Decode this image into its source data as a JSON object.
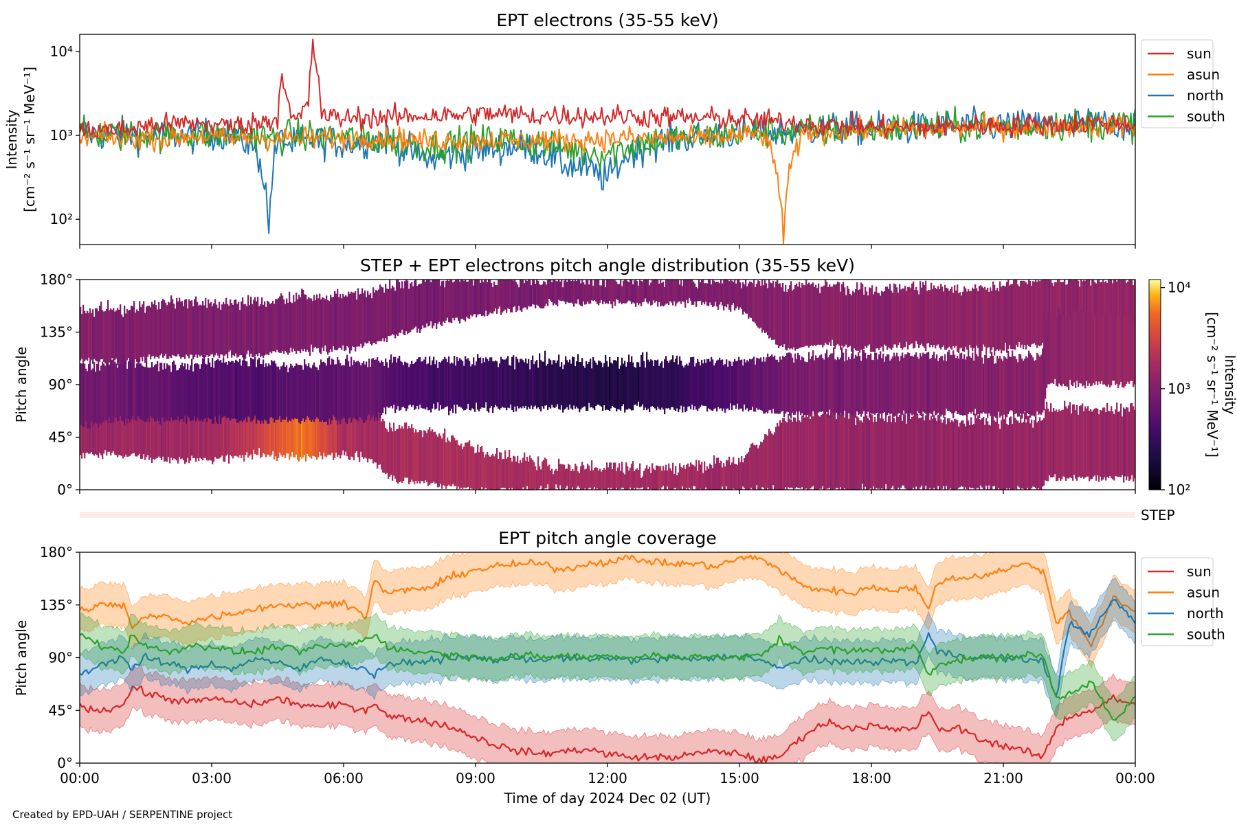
{
  "credit": "Created by EPD-UAH / SERPENTINE project",
  "colors": {
    "sun": "#d62728",
    "asun": "#ff7f0e",
    "north": "#1f77b4",
    "south": "#2ca02c",
    "step_bar": "#fdebe6"
  },
  "chart_data": [
    {
      "type": "line",
      "title": "EPT electrons (35-55 keV)",
      "ylabel_line1": "Intensity",
      "ylabel_line2": "[cm⁻² s⁻¹ sr⁻¹ MeV⁻¹]",
      "yscale": "log",
      "ylim": [
        50,
        16000
      ],
      "yticks": [
        "10²",
        "10³",
        "10⁴"
      ],
      "x_hours": [
        0,
        0.5,
        1,
        1.5,
        2,
        2.5,
        3,
        3.5,
        4,
        4.3,
        4.5,
        4.6,
        4.8,
        5,
        5.2,
        5.3,
        5.5,
        6,
        6.5,
        7,
        7.5,
        8,
        8.5,
        9,
        9.5,
        10,
        10.5,
        11,
        11.5,
        12,
        12.5,
        13,
        13.5,
        14,
        14.5,
        15,
        15.5,
        16,
        16.5,
        17,
        17.5,
        18,
        18.5,
        19,
        19.5,
        20,
        20.5,
        21,
        21.5,
        22,
        22.5,
        23,
        23.5,
        24
      ],
      "legend": [
        "sun",
        "asun",
        "north",
        "south"
      ],
      "legend_position": "outside right",
      "series": [
        {
          "name": "sun",
          "values": [
            1100,
            1200,
            1150,
            1300,
            1350,
            1400,
            1350,
            1300,
            1400,
            1500,
            1600,
            5400,
            1500,
            1600,
            2400,
            10500,
            1700,
            1600,
            1650,
            1600,
            1700,
            1750,
            1700,
            1800,
            1800,
            1750,
            1700,
            1750,
            1700,
            1700,
            1700,
            1650,
            1650,
            1600,
            1600,
            1550,
            1500,
            1450,
            1400,
            1300,
            1300,
            1250,
            1250,
            1250,
            1250,
            1300,
            1300,
            1300,
            1350,
            1350,
            1350,
            1400,
            1400,
            1400
          ]
        },
        {
          "name": "asun",
          "values": [
            900,
            950,
            900,
            950,
            900,
            1000,
            950,
            900,
            950,
            900,
            950,
            900,
            950,
            900,
            950,
            900,
            950,
            900,
            950,
            950,
            900,
            850,
            900,
            850,
            900,
            850,
            900,
            850,
            900,
            900,
            950,
            900,
            950,
            900,
            950,
            1000,
            1050,
            50,
            1100,
            1100,
            1150,
            1150,
            1200,
            1150,
            1200,
            1200,
            1250,
            1250,
            1200,
            1250,
            1300,
            1300,
            1300,
            1300
          ]
        },
        {
          "name": "north",
          "values": [
            1100,
            1000,
            1050,
            950,
            1000,
            950,
            1050,
            1000,
            700,
            60,
            800,
            900,
            750,
            850,
            800,
            900,
            850,
            800,
            850,
            900,
            650,
            500,
            600,
            650,
            700,
            750,
            650,
            450,
            400,
            300,
            600,
            800,
            900,
            950,
            1000,
            1050,
            1100,
            1100,
            1150,
            1200,
            1200,
            1200,
            1250,
            1200,
            1250,
            1300,
            1300,
            1300,
            1300,
            1350,
            1350,
            1400,
            1350,
            1350
          ]
        },
        {
          "name": "south",
          "values": [
            1000,
            1050,
            1000,
            1050,
            1000,
            1050,
            1000,
            1050,
            1000,
            900,
            950,
            950,
            1000,
            950,
            1000,
            950,
            1000,
            950,
            900,
            850,
            800,
            750,
            800,
            850,
            900,
            850,
            800,
            700,
            650,
            600,
            750,
            850,
            900,
            950,
            1000,
            1050,
            1100,
            1100,
            1150,
            1150,
            1200,
            1200,
            1200,
            1250,
            1250,
            1250,
            1300,
            1300,
            1300,
            1350,
            1350,
            1350,
            1400,
            1400
          ]
        }
      ]
    },
    {
      "type": "heatmap",
      "title": "STEP + EPT electrons pitch angle distribution (35-55 keV)",
      "ylabel": "Pitch angle",
      "ylim": [
        0,
        180
      ],
      "yticks": [
        "0°",
        "45°",
        "90°",
        "135°",
        "180°"
      ],
      "colorbar_label_line1": "Intensity",
      "colorbar_label_line2": "[cm⁻² s⁻¹ sr⁻¹ MeV⁻¹]",
      "colorbar_ticks": [
        "10²",
        "10³",
        "10⁴"
      ],
      "colorbar_range": [
        100,
        12000
      ],
      "colormap": "inferno",
      "strip_label": "STEP",
      "bands": [
        {
          "name": "sun",
          "x_hours": [
            0,
            1,
            2,
            3,
            4,
            5,
            6,
            6.7,
            7,
            8,
            9,
            10,
            11,
            12,
            13,
            14,
            15,
            16,
            17,
            18,
            19,
            20,
            21,
            21.9,
            22,
            23,
            24
          ],
          "low": [
            30,
            30,
            25,
            25,
            30,
            28,
            30,
            25,
            10,
            5,
            0,
            0,
            0,
            0,
            0,
            0,
            0,
            0,
            0,
            0,
            0,
            0,
            0,
            0,
            10,
            10,
            10
          ],
          "high": [
            80,
            75,
            70,
            75,
            70,
            72,
            75,
            70,
            55,
            50,
            35,
            25,
            20,
            20,
            18,
            20,
            25,
            60,
            65,
            60,
            65,
            60,
            60,
            60,
            70,
            70,
            70
          ],
          "intensity": [
            1400,
            1600,
            1600,
            1700,
            2500,
            6000,
            1800,
            1800,
            1900,
            1900,
            1900,
            1800,
            1800,
            1800,
            1700,
            1700,
            1600,
            1500,
            1400,
            1400,
            1300,
            1300,
            1400,
            1400,
            1500,
            1500,
            1500
          ]
        },
        {
          "name": "asun",
          "x_hours": [
            0,
            1,
            2,
            3,
            4,
            5,
            6,
            6.7,
            7,
            8,
            9,
            10,
            11,
            12,
            13,
            14,
            15,
            16,
            17,
            18,
            19,
            20,
            21,
            21.9,
            22,
            23,
            24
          ],
          "low": [
            110,
            110,
            115,
            115,
            115,
            120,
            120,
            125,
            130,
            140,
            150,
            155,
            160,
            160,
            160,
            160,
            155,
            120,
            125,
            120,
            125,
            120,
            120,
            125,
            100,
            100,
            100
          ],
          "high": [
            155,
            155,
            160,
            160,
            160,
            165,
            165,
            170,
            175,
            180,
            180,
            180,
            180,
            180,
            180,
            180,
            180,
            175,
            175,
            170,
            175,
            170,
            175,
            180,
            180,
            180,
            180
          ],
          "intensity": [
            1000,
            950,
            1000,
            950,
            950,
            950,
            950,
            950,
            900,
            900,
            900,
            900,
            900,
            950,
            950,
            950,
            1000,
            1100,
            1150,
            1150,
            1200,
            1200,
            1250,
            1250,
            1300,
            1300,
            1300
          ]
        },
        {
          "name": "north",
          "x_hours": [
            0,
            1,
            2,
            3,
            4,
            5,
            6,
            6.7,
            7,
            8,
            9,
            10,
            11,
            12,
            13,
            14,
            15,
            16,
            17,
            18,
            19,
            20,
            21,
            21.9,
            22,
            23,
            24
          ],
          "low": [
            55,
            60,
            60,
            60,
            60,
            60,
            60,
            60,
            70,
            70,
            70,
            70,
            70,
            70,
            70,
            70,
            70,
            65,
            65,
            65,
            65,
            65,
            65,
            65,
            90,
            90,
            90
          ],
          "high": [
            105,
            110,
            105,
            110,
            110,
            105,
            110,
            110,
            110,
            110,
            110,
            110,
            110,
            110,
            110,
            110,
            110,
            115,
            115,
            115,
            115,
            115,
            115,
            115,
            150,
            150,
            150
          ],
          "intensity": [
            800,
            700,
            600,
            500,
            450,
            550,
            600,
            700,
            500,
            400,
            350,
            300,
            250,
            220,
            250,
            350,
            500,
            800,
            900,
            950,
            1000,
            1000,
            1100,
            1100,
            1200,
            1300,
            1300
          ]
        }
      ],
      "gaps_note_hidden": ""
    },
    {
      "type": "line",
      "title": "EPT pitch angle coverage",
      "ylabel": "Pitch angle",
      "xlabel": "Time of day 2024 Dec 02 (UT)",
      "ylim": [
        0,
        180
      ],
      "yticks": [
        "0°",
        "45°",
        "90°",
        "135°",
        "180°"
      ],
      "xticks": [
        "00:00",
        "03:00",
        "06:00",
        "09:00",
        "12:00",
        "15:00",
        "18:00",
        "21:00",
        "00:00"
      ],
      "legend": [
        "sun",
        "asun",
        "north",
        "south"
      ],
      "legend_position": "outside right",
      "x_hours": [
        0,
        0.5,
        1,
        1.2,
        1.5,
        2,
        2.5,
        3,
        3.5,
        4,
        4.5,
        5,
        5.5,
        6,
        6.5,
        6.7,
        7,
        7.5,
        8,
        8.5,
        9,
        9.5,
        10,
        10.5,
        11,
        11.5,
        12,
        12.5,
        13,
        13.5,
        14,
        14.5,
        15,
        15.5,
        15.9,
        16.5,
        17,
        17.5,
        18,
        18.5,
        19,
        19.3,
        19.5,
        20,
        20.5,
        21,
        21.5,
        21.9,
        22.2,
        22.5,
        23,
        23.5,
        24
      ],
      "series": [
        {
          "name": "sun",
          "values": [
            48,
            45,
            50,
            65,
            60,
            55,
            52,
            55,
            52,
            50,
            55,
            50,
            48,
            50,
            45,
            52,
            40,
            38,
            35,
            30,
            22,
            15,
            10,
            8,
            10,
            12,
            8,
            5,
            5,
            5,
            8,
            10,
            8,
            2,
            5,
            25,
            35,
            30,
            32,
            28,
            30,
            45,
            28,
            30,
            20,
            15,
            10,
            5,
            30,
            40,
            45,
            55,
            50
          ]
        },
        {
          "name": "asun",
          "values": [
            130,
            135,
            135,
            115,
            125,
            125,
            120,
            125,
            128,
            132,
            135,
            135,
            135,
            138,
            125,
            155,
            145,
            148,
            150,
            160,
            165,
            168,
            170,
            170,
            165,
            170,
            172,
            175,
            172,
            170,
            170,
            168,
            175,
            175,
            165,
            150,
            148,
            145,
            150,
            148,
            150,
            130,
            155,
            158,
            160,
            165,
            170,
            165,
            120,
            130,
            100,
            140,
            130
          ]
        },
        {
          "name": "north",
          "values": [
            75,
            85,
            90,
            80,
            90,
            85,
            80,
            85,
            80,
            90,
            85,
            80,
            90,
            85,
            80,
            75,
            85,
            85,
            88,
            90,
            90,
            88,
            90,
            88,
            90,
            88,
            90,
            88,
            88,
            90,
            88,
            90,
            92,
            88,
            80,
            90,
            85,
            88,
            85,
            88,
            85,
            110,
            95,
            92,
            90,
            90,
            88,
            88,
            55,
            120,
            110,
            140,
            120
          ]
        },
        {
          "name": "south",
          "values": [
            110,
            100,
            95,
            110,
            100,
            95,
            100,
            100,
            95,
            95,
            100,
            95,
            100,
            100,
            105,
            110,
            100,
            95,
            95,
            92,
            90,
            90,
            92,
            90,
            92,
            90,
            92,
            90,
            92,
            90,
            92,
            90,
            90,
            92,
            105,
            95,
            98,
            95,
            98,
            95,
            100,
            75,
            85,
            88,
            90,
            90,
            92,
            92,
            55,
            60,
            70,
            35,
            55
          ]
        }
      ],
      "band_half_width": 18
    }
  ]
}
